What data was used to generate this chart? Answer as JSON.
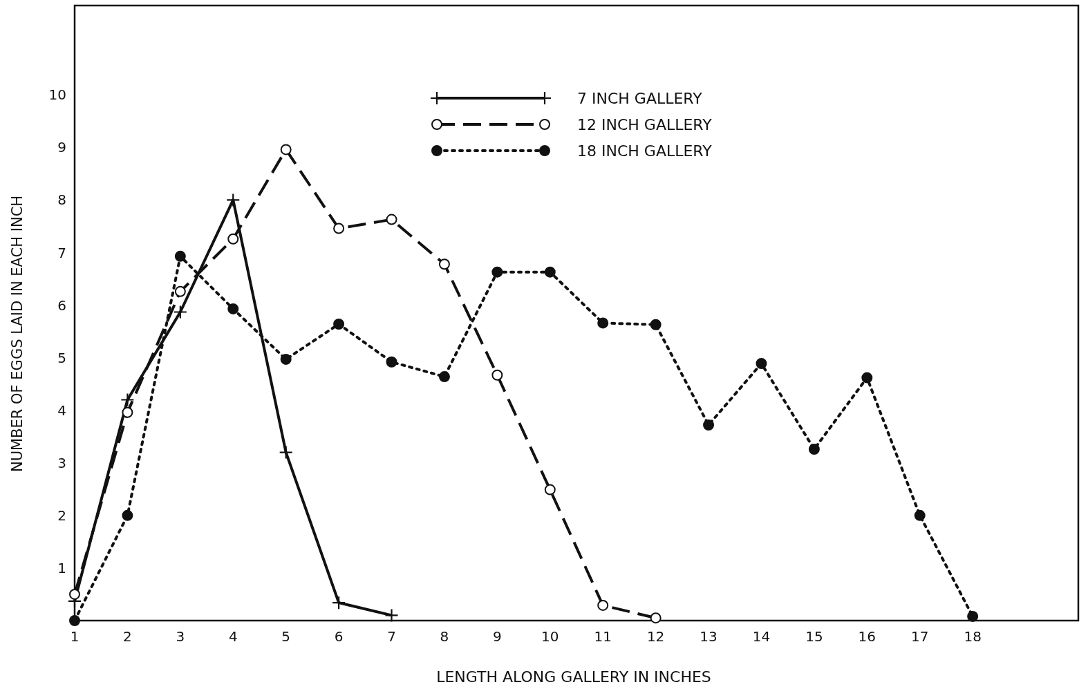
{
  "chart_data": {
    "type": "line",
    "xlabel": "LENGTH ALONG GALLERY IN INCHES",
    "ylabel": "NUMBER OF EGGS LAID IN EACH INCH",
    "xlim": [
      1,
      20
    ],
    "xticks": [
      1,
      2,
      3,
      4,
      5,
      6,
      7,
      8,
      9,
      10,
      11,
      12,
      13,
      14,
      15,
      16,
      17,
      18
    ],
    "ylim": [
      0,
      11.7
    ],
    "yticks": [
      1,
      2,
      3,
      4,
      5,
      6,
      7,
      8,
      9,
      10
    ],
    "grid": false,
    "legend": "top",
    "series": [
      {
        "name": "7 INCH GALLERY",
        "color": "#111111",
        "line_style": "solid",
        "marker": "cross",
        "x": [
          1,
          2,
          3,
          4,
          5,
          6,
          7
        ],
        "values": [
          0.37,
          4.2,
          5.87,
          8.0,
          3.2,
          0.34,
          0.1
        ]
      },
      {
        "name": "12 INCH GALLERY",
        "color": "#111111",
        "line_style": "dashed",
        "marker": "circle",
        "x": [
          1,
          2,
          3,
          4,
          5,
          6,
          7,
          8,
          9,
          10,
          11,
          12
        ],
        "values": [
          0.5,
          3.96,
          6.26,
          7.26,
          8.96,
          7.46,
          7.63,
          6.78,
          4.67,
          2.49,
          0.29,
          0.05
        ]
      },
      {
        "name": "18 INCH GALLERY",
        "color": "#111111",
        "line_style": "dotted",
        "marker": "circle",
        "x": [
          1,
          2,
          3,
          4,
          5,
          6,
          7,
          8,
          9,
          10,
          11,
          12,
          13,
          14,
          15,
          16,
          17,
          18
        ],
        "values": [
          0,
          2.0,
          6.93,
          5.93,
          4.97,
          5.64,
          4.92,
          4.64,
          6.63,
          6.63,
          5.66,
          5.63,
          3.72,
          4.89,
          3.26,
          4.62,
          2.0,
          0.08
        ]
      }
    ]
  }
}
